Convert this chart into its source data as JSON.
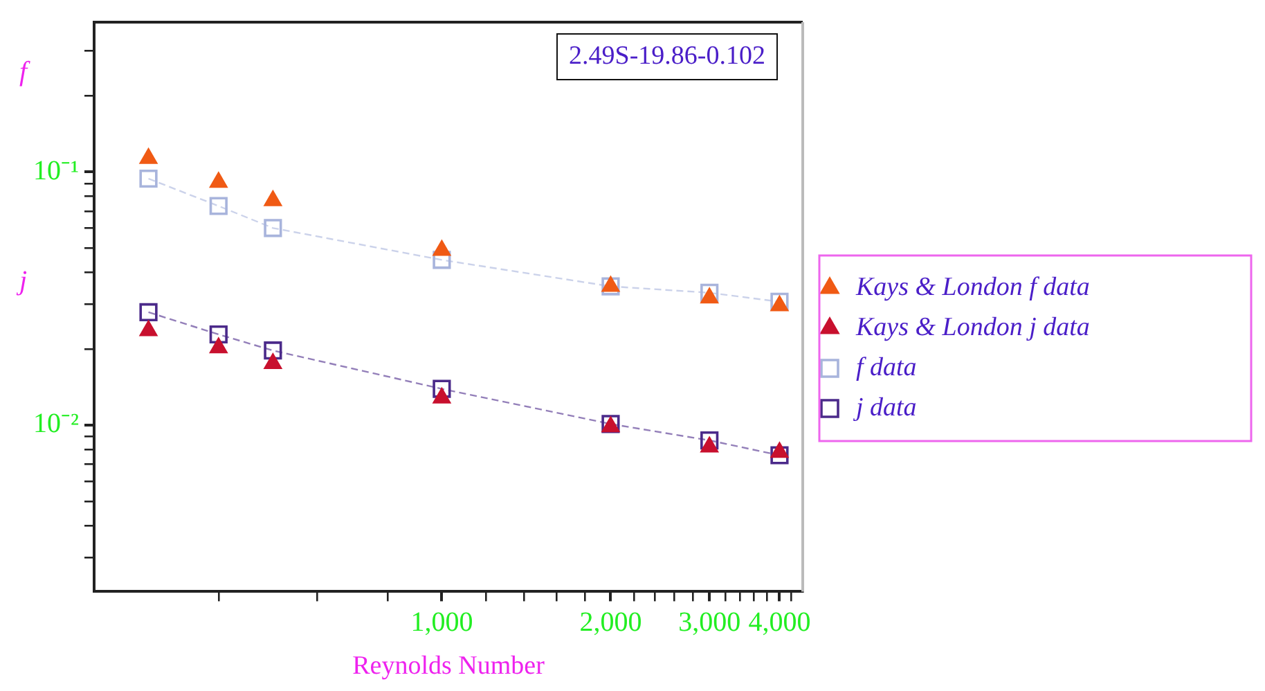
{
  "chart_data": {
    "type": "scatter",
    "xlabel": "Reynolds Number",
    "ylabel": "f",
    "annotations": [
      "2.49S-19.86-0.102",
      "j"
    ],
    "x": [
      300,
      400,
      500,
      1000,
      2000,
      3000,
      4000
    ],
    "series": [
      {
        "name": "Kays & London f data",
        "marker": "triangle",
        "color": "#f05a14",
        "values": [
          0.113,
          0.091,
          0.077,
          0.049,
          0.0353,
          0.0318,
          0.0296
        ]
      },
      {
        "name": "Kays & London j data",
        "marker": "triangle",
        "color": "#c8102e",
        "values": [
          0.0236,
          0.0202,
          0.0175,
          0.0128,
          0.00985,
          0.0082,
          0.0078
        ]
      },
      {
        "name": "f data",
        "type": "line",
        "marker": "square",
        "color": "#a8b4dc",
        "values": [
          0.094,
          0.0733,
          0.06,
          0.0449,
          0.0353,
          0.0333,
          0.0307
        ]
      },
      {
        "name": "j data",
        "type": "line",
        "marker": "square",
        "color": "#4b2a8a",
        "values": [
          0.0279,
          0.0228,
          0.0197,
          0.0139,
          0.0101,
          0.0087,
          0.0076
        ]
      }
    ],
    "log": "xy",
    "xlim": [
      240,
      4400
    ],
    "ylim": [
      0.0022,
      0.39
    ],
    "xticks": [
      {
        "value": 400,
        "label": null
      },
      {
        "value": 600,
        "label": null
      },
      {
        "value": 800,
        "label": null
      },
      {
        "value": 1000,
        "label": "1,000"
      },
      {
        "value": 1200,
        "label": null
      },
      {
        "value": 1400,
        "label": null
      },
      {
        "value": 1600,
        "label": null
      },
      {
        "value": 1800,
        "label": null
      },
      {
        "value": 2000,
        "label": "2,000"
      },
      {
        "value": 2200,
        "label": null
      },
      {
        "value": 2400,
        "label": null
      },
      {
        "value": 2600,
        "label": null
      },
      {
        "value": 2800,
        "label": null
      },
      {
        "value": 3000,
        "label": "3,000"
      },
      {
        "value": 3200,
        "label": null
      },
      {
        "value": 3400,
        "label": null
      },
      {
        "value": 3600,
        "label": null
      },
      {
        "value": 3800,
        "label": null
      },
      {
        "value": 4000,
        "label": "4,000"
      },
      {
        "value": 4200,
        "label": null
      }
    ],
    "yticks": [
      {
        "value": 0.003,
        "label": null
      },
      {
        "value": 0.004,
        "label": null
      },
      {
        "value": 0.005,
        "label": null
      },
      {
        "value": 0.006,
        "label": null
      },
      {
        "value": 0.007,
        "label": null
      },
      {
        "value": 0.008,
        "label": null
      },
      {
        "value": 0.009,
        "label": null
      },
      {
        "value": 0.01,
        "label": "10⁻²"
      },
      {
        "value": 0.02,
        "label": null
      },
      {
        "value": 0.03,
        "label": null
      },
      {
        "value": 0.04,
        "label": null
      },
      {
        "value": 0.05,
        "label": null
      },
      {
        "value": 0.06,
        "label": null
      },
      {
        "value": 0.07,
        "label": null
      },
      {
        "value": 0.08,
        "label": null
      },
      {
        "value": 0.09,
        "label": null
      },
      {
        "value": 0.1,
        "label": "10⁻¹"
      },
      {
        "value": 0.2,
        "label": null
      },
      {
        "value": 0.3,
        "label": null
      }
    ],
    "grid": false,
    "legend": "right",
    "line_style": "dashed"
  }
}
